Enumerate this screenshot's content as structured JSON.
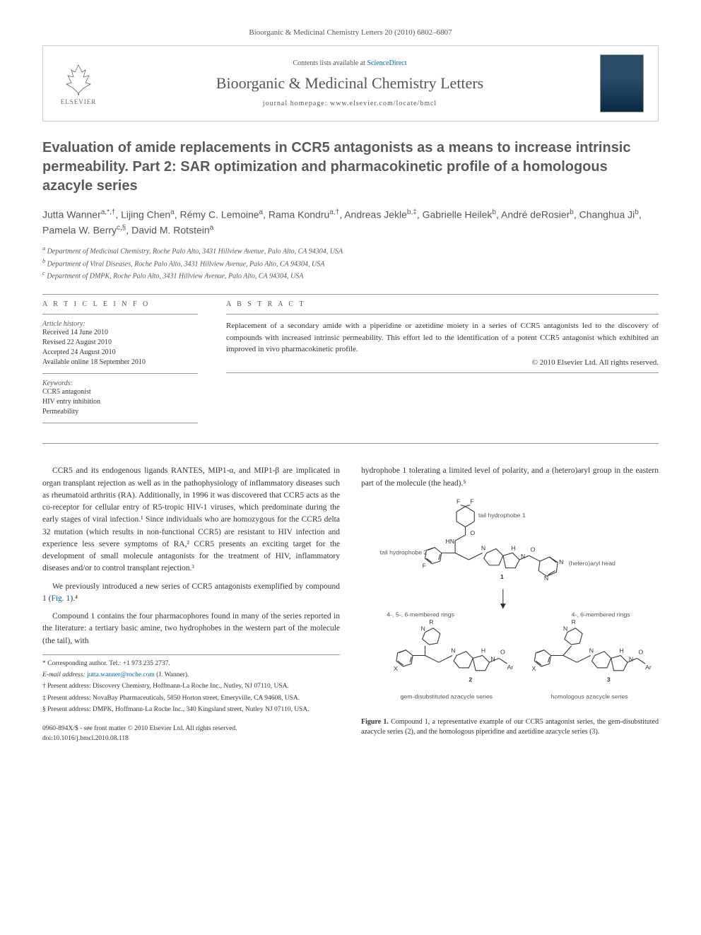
{
  "journal_ref": "Bioorganic & Medicinal Chemistry Letters 20 (2010) 6802–6807",
  "header": {
    "contents_prefix": "Contents lists available at ",
    "contents_link": "ScienceDirect",
    "journal_name": "Bioorganic & Medicinal Chemistry Letters",
    "homepage_prefix": "journal homepage: ",
    "homepage_url": "www.elsevier.com/locate/bmcl",
    "publisher": "ELSEVIER"
  },
  "title": "Evaluation of amide replacements in CCR5 antagonists as a means to increase intrinsic permeability. Part 2: SAR optimization and pharmacokinetic profile of a homologous azacyle series",
  "authors_html": "Jutta Wanner<span class='sup'>a,*,†</span>, Lijing Chen<span class='sup'>a</span>, Rémy C. Lemoine<span class='sup'>a</span>, Rama Kondru<span class='sup'>a,†</span>, Andreas Jekle<span class='sup'>b,‡</span>, Gabrielle Heilek<span class='sup'>b</span>, André deRosier<span class='sup'>b</span>, Changhua Ji<span class='sup'>b</span>, Pamela W. Berry<span class='sup'>c,§</span>, David M. Rotstein<span class='sup'>a</span>",
  "affiliations": [
    "a Department of Medicinal Chemistry, Roche Palo Alto, 3431 Hillview Avenue, Palo Alto, CA 94304, USA",
    "b Department of Viral Diseases, Roche Palo Alto, 3431 Hillview Avenue, Palo Alto, CA 94304, USA",
    "c Department of DMPK, Roche Palo Alto, 3431 Hillview Avenue, Palo Alto, CA 94304, USA"
  ],
  "article_info": {
    "heading": "A R T I C L E   I N F O",
    "history_head": "Article history:",
    "history": [
      "Received 14 June 2010",
      "Revised 22 August 2010",
      "Accepted 24 August 2010",
      "Available online 18 September 2010"
    ],
    "keywords_head": "Keywords:",
    "keywords": [
      "CCR5 antagonist",
      "HIV entry inhibition",
      "Permeability"
    ]
  },
  "abstract": {
    "heading": "A B S T R A C T",
    "text": "Replacement of a secondary amide with a piperidine or azetidine moiety in a series of CCR5 antagonists led to the discovery of compounds with increased intrinsic permeability. This effort led to the identification of a potent CCR5 antagonist which exhibited an improved in vivo pharmacokinetic profile.",
    "copyright": "© 2010 Elsevier Ltd. All rights reserved."
  },
  "body": {
    "col1": [
      "CCR5 and its endogenous ligands RANTES, MIP1-α, and MIP1-β are implicated in organ transplant rejection as well as in the pathophysiology of inflammatory diseases such as rheumatoid arthritis (RA). Additionally, in 1996 it was discovered that CCR5 acts as the co-receptor for cellular entry of R5-tropic HIV-1 viruses, which predominate during the early stages of viral infection.¹ Since individuals who are homozygous for the CCR5 delta 32 mutation (which results in non-functional CCR5) are resistant to HIV infection and experience less severe symptoms of RA,² CCR5 presents an exciting target for the development of small molecule antagonists for the treatment of HIV, inflammatory diseases and/or to control transplant rejection.³",
      "We previously introduced a new series of CCR5 antagonists exemplified by compound 1 (Fig. 1).⁴",
      "Compound 1 contains the four pharmacophores found in many of the series reported in the literature: a tertiary basic amine, two hydrophobes in the western part of the molecule (the tail), with"
    ],
    "col2_intro": "hydrophobe 1 tolerating a limited level of polarity, and a (hetero)aryl group in the eastern part of the molecule (the head).⁵"
  },
  "figure": {
    "labels": {
      "tail_h1": "tail hydrophobe 1",
      "tail_h2": "tail hydrophobe 2",
      "head": "(hetero)aryl head",
      "rings_left": "4-, 5-, 6-membered rings",
      "rings_right": "4-, 6-membered rings",
      "series2": "gem-disubstituted azacycle series",
      "series3": "homologous azacycle series",
      "c1": "1",
      "c2": "2",
      "c3": "3",
      "F": "F",
      "O": "O",
      "N": "N",
      "HN": "HN",
      "H": "H",
      "R": "R",
      "X": "X",
      "Ar": "Ar"
    },
    "caption_bold": "Figure 1.",
    "caption": " Compound 1, a representative example of our CCR5 antagonist series, the gem-disubstituted azacycle series (2), and the homologous piperidine and azetidine azacycle series (3).",
    "colors": {
      "bond": "#333333",
      "label": "#333333",
      "annotation": "#555555"
    }
  },
  "footnotes": {
    "corr": "* Corresponding author. Tel.: +1 973 235 2737.",
    "email_label": "E-mail address: ",
    "email": "jutta.wanner@roche.com",
    "email_suffix": " (J. Wanner).",
    "n1": "† Present address: Discovery Chemistry, Hoffmann-La Roche Inc., Nutley, NJ 07110, USA.",
    "n2": "‡ Present address: NovaBay Pharmaceuticals, 5850 Horton street, Emeryville, CA 94608, USA.",
    "n3": "§ Present address: DMPK, Hoffmann-La Roche Inc., 340 Kingsland street, Nutley NJ 07110, USA."
  },
  "footer": {
    "line1": "0960-894X/$ - see front matter © 2010 Elsevier Ltd. All rights reserved.",
    "line2": "doi:10.1016/j.bmcl.2010.08.118"
  }
}
